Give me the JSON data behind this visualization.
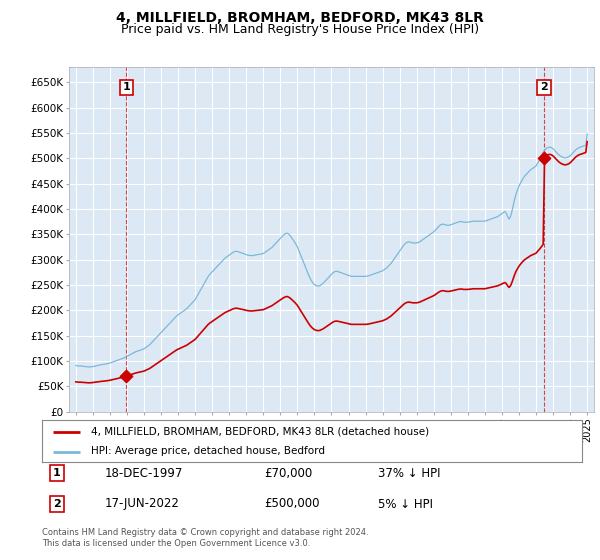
{
  "title": "4, MILLFIELD, BROMHAM, BEDFORD, MK43 8LR",
  "subtitle": "Price paid vs. HM Land Registry's House Price Index (HPI)",
  "title_fontsize": 10,
  "subtitle_fontsize": 9,
  "background_color": "#ffffff",
  "plot_bg_color": "#dce9f5",
  "grid_color": "#ffffff",
  "sale1": {
    "date": 1997.96,
    "price": 70000,
    "label": "1",
    "pct": "37% ↓ HPI",
    "date_str": "18-DEC-1997"
  },
  "sale2": {
    "date": 2022.46,
    "price": 500000,
    "label": "2",
    "pct": "5% ↓ HPI",
    "date_str": "17-JUN-2022"
  },
  "hpi_color": "#7bb8d8",
  "price_color": "#cc0000",
  "marker_color": "#cc0000",
  "dashed_color": "#cc0000",
  "ylim": [
    0,
    680000
  ],
  "xlim": [
    1994.6,
    2025.4
  ],
  "yticks": [
    0,
    50000,
    100000,
    150000,
    200000,
    250000,
    300000,
    350000,
    400000,
    450000,
    500000,
    550000,
    600000,
    650000
  ],
  "ytick_labels": [
    "£0",
    "£50K",
    "£100K",
    "£150K",
    "£200K",
    "£250K",
    "£300K",
    "£350K",
    "£400K",
    "£450K",
    "£500K",
    "£550K",
    "£600K",
    "£650K"
  ],
  "xticks": [
    1995,
    1996,
    1997,
    1998,
    1999,
    2000,
    2001,
    2002,
    2003,
    2004,
    2005,
    2006,
    2007,
    2008,
    2009,
    2010,
    2011,
    2012,
    2013,
    2014,
    2015,
    2016,
    2017,
    2018,
    2019,
    2020,
    2021,
    2022,
    2023,
    2024,
    2025
  ],
  "legend_label1": "4, MILLFIELD, BROMHAM, BEDFORD, MK43 8LR (detached house)",
  "legend_label2": "HPI: Average price, detached house, Bedford",
  "footer": "Contains HM Land Registry data © Crown copyright and database right 2024.\nThis data is licensed under the Open Government Licence v3.0.",
  "hpi_monthly": [
    [
      1995.0,
      91000
    ],
    [
      1995.083,
      90500
    ],
    [
      1995.167,
      90000
    ],
    [
      1995.25,
      90200
    ],
    [
      1995.333,
      89800
    ],
    [
      1995.417,
      89500
    ],
    [
      1995.5,
      89000
    ],
    [
      1995.583,
      88800
    ],
    [
      1995.667,
      88500
    ],
    [
      1995.75,
      88000
    ],
    [
      1995.833,
      88200
    ],
    [
      1995.917,
      88500
    ],
    [
      1996.0,
      89000
    ],
    [
      1996.083,
      89500
    ],
    [
      1996.167,
      90000
    ],
    [
      1996.25,
      90800
    ],
    [
      1996.333,
      91500
    ],
    [
      1996.417,
      92000
    ],
    [
      1996.5,
      92500
    ],
    [
      1996.583,
      93000
    ],
    [
      1996.667,
      93500
    ],
    [
      1996.75,
      94000
    ],
    [
      1996.833,
      94500
    ],
    [
      1996.917,
      95000
    ],
    [
      1997.0,
      96000
    ],
    [
      1997.083,
      97000
    ],
    [
      1997.167,
      98000
    ],
    [
      1997.25,
      99000
    ],
    [
      1997.333,
      100000
    ],
    [
      1997.417,
      101000
    ],
    [
      1997.5,
      102000
    ],
    [
      1997.583,
      103000
    ],
    [
      1997.667,
      104000
    ],
    [
      1997.75,
      105000
    ],
    [
      1997.833,
      106500
    ],
    [
      1997.917,
      108000
    ],
    [
      1998.0,
      109000
    ],
    [
      1998.083,
      110500
    ],
    [
      1998.167,
      112000
    ],
    [
      1998.25,
      113500
    ],
    [
      1998.333,
      115000
    ],
    [
      1998.417,
      116500
    ],
    [
      1998.5,
      118000
    ],
    [
      1998.583,
      119000
    ],
    [
      1998.667,
      120000
    ],
    [
      1998.75,
      121000
    ],
    [
      1998.833,
      122000
    ],
    [
      1998.917,
      123000
    ],
    [
      1999.0,
      124000
    ],
    [
      1999.083,
      126000
    ],
    [
      1999.167,
      128000
    ],
    [
      1999.25,
      130000
    ],
    [
      1999.333,
      132000
    ],
    [
      1999.417,
      135000
    ],
    [
      1999.5,
      138000
    ],
    [
      1999.583,
      141000
    ],
    [
      1999.667,
      144000
    ],
    [
      1999.75,
      147000
    ],
    [
      1999.833,
      150000
    ],
    [
      1999.917,
      153000
    ],
    [
      2000.0,
      156000
    ],
    [
      2000.083,
      159000
    ],
    [
      2000.167,
      162000
    ],
    [
      2000.25,
      165000
    ],
    [
      2000.333,
      168000
    ],
    [
      2000.417,
      171000
    ],
    [
      2000.5,
      174000
    ],
    [
      2000.583,
      177000
    ],
    [
      2000.667,
      180000
    ],
    [
      2000.75,
      183000
    ],
    [
      2000.833,
      186000
    ],
    [
      2000.917,
      189000
    ],
    [
      2001.0,
      191000
    ],
    [
      2001.083,
      193000
    ],
    [
      2001.167,
      195000
    ],
    [
      2001.25,
      197000
    ],
    [
      2001.333,
      199000
    ],
    [
      2001.417,
      201000
    ],
    [
      2001.5,
      203000
    ],
    [
      2001.583,
      206000
    ],
    [
      2001.667,
      209000
    ],
    [
      2001.75,
      212000
    ],
    [
      2001.833,
      215000
    ],
    [
      2001.917,
      218000
    ],
    [
      2002.0,
      221000
    ],
    [
      2002.083,
      226000
    ],
    [
      2002.167,
      231000
    ],
    [
      2002.25,
      236000
    ],
    [
      2002.333,
      241000
    ],
    [
      2002.417,
      246000
    ],
    [
      2002.5,
      251000
    ],
    [
      2002.583,
      256000
    ],
    [
      2002.667,
      261000
    ],
    [
      2002.75,
      266000
    ],
    [
      2002.833,
      270000
    ],
    [
      2002.917,
      273000
    ],
    [
      2003.0,
      276000
    ],
    [
      2003.083,
      279000
    ],
    [
      2003.167,
      282000
    ],
    [
      2003.25,
      285000
    ],
    [
      2003.333,
      288000
    ],
    [
      2003.417,
      291000
    ],
    [
      2003.5,
      294000
    ],
    [
      2003.583,
      297000
    ],
    [
      2003.667,
      300000
    ],
    [
      2003.75,
      303000
    ],
    [
      2003.833,
      305000
    ],
    [
      2003.917,
      307000
    ],
    [
      2004.0,
      309000
    ],
    [
      2004.083,
      311000
    ],
    [
      2004.167,
      313000
    ],
    [
      2004.25,
      315000
    ],
    [
      2004.333,
      316000
    ],
    [
      2004.417,
      316500
    ],
    [
      2004.5,
      316000
    ],
    [
      2004.583,
      315000
    ],
    [
      2004.667,
      314000
    ],
    [
      2004.75,
      313000
    ],
    [
      2004.833,
      312000
    ],
    [
      2004.917,
      311000
    ],
    [
      2005.0,
      310000
    ],
    [
      2005.083,
      309000
    ],
    [
      2005.167,
      308500
    ],
    [
      2005.25,
      308000
    ],
    [
      2005.333,
      308000
    ],
    [
      2005.417,
      308500
    ],
    [
      2005.5,
      309000
    ],
    [
      2005.583,
      309500
    ],
    [
      2005.667,
      310000
    ],
    [
      2005.75,
      310500
    ],
    [
      2005.833,
      311000
    ],
    [
      2005.917,
      311500
    ],
    [
      2006.0,
      312000
    ],
    [
      2006.083,
      314000
    ],
    [
      2006.167,
      316000
    ],
    [
      2006.25,
      318000
    ],
    [
      2006.333,
      320000
    ],
    [
      2006.417,
      322000
    ],
    [
      2006.5,
      324000
    ],
    [
      2006.583,
      327000
    ],
    [
      2006.667,
      330000
    ],
    [
      2006.75,
      333000
    ],
    [
      2006.833,
      336000
    ],
    [
      2006.917,
      339000
    ],
    [
      2007.0,
      342000
    ],
    [
      2007.083,
      345000
    ],
    [
      2007.167,
      348000
    ],
    [
      2007.25,
      350000
    ],
    [
      2007.333,
      352000
    ],
    [
      2007.417,
      352000
    ],
    [
      2007.5,
      350000
    ],
    [
      2007.583,
      347000
    ],
    [
      2007.667,
      343000
    ],
    [
      2007.75,
      339000
    ],
    [
      2007.833,
      335000
    ],
    [
      2007.917,
      330000
    ],
    [
      2008.0,
      325000
    ],
    [
      2008.083,
      318000
    ],
    [
      2008.167,
      311000
    ],
    [
      2008.25,
      304000
    ],
    [
      2008.333,
      297000
    ],
    [
      2008.417,
      290000
    ],
    [
      2008.5,
      283000
    ],
    [
      2008.583,
      276000
    ],
    [
      2008.667,
      269000
    ],
    [
      2008.75,
      263000
    ],
    [
      2008.833,
      258000
    ],
    [
      2008.917,
      254000
    ],
    [
      2009.0,
      251000
    ],
    [
      2009.083,
      249000
    ],
    [
      2009.167,
      248000
    ],
    [
      2009.25,
      248000
    ],
    [
      2009.333,
      249000
    ],
    [
      2009.417,
      251000
    ],
    [
      2009.5,
      253000
    ],
    [
      2009.583,
      256000
    ],
    [
      2009.667,
      259000
    ],
    [
      2009.75,
      262000
    ],
    [
      2009.833,
      265000
    ],
    [
      2009.917,
      268000
    ],
    [
      2010.0,
      271000
    ],
    [
      2010.083,
      274000
    ],
    [
      2010.167,
      276000
    ],
    [
      2010.25,
      277000
    ],
    [
      2010.333,
      277000
    ],
    [
      2010.417,
      276000
    ],
    [
      2010.5,
      275000
    ],
    [
      2010.583,
      274000
    ],
    [
      2010.667,
      273000
    ],
    [
      2010.75,
      272000
    ],
    [
      2010.833,
      271000
    ],
    [
      2010.917,
      270000
    ],
    [
      2011.0,
      269000
    ],
    [
      2011.083,
      268000
    ],
    [
      2011.167,
      267000
    ],
    [
      2011.25,
      267000
    ],
    [
      2011.333,
      267000
    ],
    [
      2011.417,
      267000
    ],
    [
      2011.5,
      267000
    ],
    [
      2011.583,
      267000
    ],
    [
      2011.667,
      267000
    ],
    [
      2011.75,
      267000
    ],
    [
      2011.833,
      267000
    ],
    [
      2011.917,
      267000
    ],
    [
      2012.0,
      267000
    ],
    [
      2012.083,
      267500
    ],
    [
      2012.167,
      268000
    ],
    [
      2012.25,
      269000
    ],
    [
      2012.333,
      270000
    ],
    [
      2012.417,
      271000
    ],
    [
      2012.5,
      272000
    ],
    [
      2012.583,
      273000
    ],
    [
      2012.667,
      274000
    ],
    [
      2012.75,
      275000
    ],
    [
      2012.833,
      276000
    ],
    [
      2012.917,
      277000
    ],
    [
      2013.0,
      278000
    ],
    [
      2013.083,
      280000
    ],
    [
      2013.167,
      282000
    ],
    [
      2013.25,
      284000
    ],
    [
      2013.333,
      287000
    ],
    [
      2013.417,
      290000
    ],
    [
      2013.5,
      293000
    ],
    [
      2013.583,
      297000
    ],
    [
      2013.667,
      301000
    ],
    [
      2013.75,
      305000
    ],
    [
      2013.833,
      309000
    ],
    [
      2013.917,
      313000
    ],
    [
      2014.0,
      317000
    ],
    [
      2014.083,
      321000
    ],
    [
      2014.167,
      325000
    ],
    [
      2014.25,
      329000
    ],
    [
      2014.333,
      332000
    ],
    [
      2014.417,
      334000
    ],
    [
      2014.5,
      335000
    ],
    [
      2014.583,
      335000
    ],
    [
      2014.667,
      334000
    ],
    [
      2014.75,
      333000
    ],
    [
      2014.833,
      333000
    ],
    [
      2014.917,
      333000
    ],
    [
      2015.0,
      333000
    ],
    [
      2015.083,
      334000
    ],
    [
      2015.167,
      335000
    ],
    [
      2015.25,
      337000
    ],
    [
      2015.333,
      339000
    ],
    [
      2015.417,
      341000
    ],
    [
      2015.5,
      343000
    ],
    [
      2015.583,
      345000
    ],
    [
      2015.667,
      347000
    ],
    [
      2015.75,
      349000
    ],
    [
      2015.833,
      351000
    ],
    [
      2015.917,
      353000
    ],
    [
      2016.0,
      355000
    ],
    [
      2016.083,
      358000
    ],
    [
      2016.167,
      361000
    ],
    [
      2016.25,
      364000
    ],
    [
      2016.333,
      367000
    ],
    [
      2016.417,
      369000
    ],
    [
      2016.5,
      370000
    ],
    [
      2016.583,
      370000
    ],
    [
      2016.667,
      369000
    ],
    [
      2016.75,
      368000
    ],
    [
      2016.833,
      368000
    ],
    [
      2016.917,
      368000
    ],
    [
      2017.0,
      369000
    ],
    [
      2017.083,
      370000
    ],
    [
      2017.167,
      371000
    ],
    [
      2017.25,
      372000
    ],
    [
      2017.333,
      373000
    ],
    [
      2017.417,
      374000
    ],
    [
      2017.5,
      375000
    ],
    [
      2017.583,
      375000
    ],
    [
      2017.667,
      375000
    ],
    [
      2017.75,
      374000
    ],
    [
      2017.833,
      374000
    ],
    [
      2017.917,
      374000
    ],
    [
      2018.0,
      374000
    ],
    [
      2018.083,
      374500
    ],
    [
      2018.167,
      375000
    ],
    [
      2018.25,
      375500
    ],
    [
      2018.333,
      376000
    ],
    [
      2018.417,
      376000
    ],
    [
      2018.5,
      376000
    ],
    [
      2018.583,
      376000
    ],
    [
      2018.667,
      376000
    ],
    [
      2018.75,
      376000
    ],
    [
      2018.833,
      376000
    ],
    [
      2018.917,
      376000
    ],
    [
      2019.0,
      376000
    ],
    [
      2019.083,
      377000
    ],
    [
      2019.167,
      378000
    ],
    [
      2019.25,
      379000
    ],
    [
      2019.333,
      380000
    ],
    [
      2019.417,
      381000
    ],
    [
      2019.5,
      382000
    ],
    [
      2019.583,
      383000
    ],
    [
      2019.667,
      384000
    ],
    [
      2019.75,
      385000
    ],
    [
      2019.833,
      387000
    ],
    [
      2019.917,
      389000
    ],
    [
      2020.0,
      391000
    ],
    [
      2020.083,
      393000
    ],
    [
      2020.167,
      395000
    ],
    [
      2020.25,
      392000
    ],
    [
      2020.333,
      385000
    ],
    [
      2020.417,
      380000
    ],
    [
      2020.5,
      385000
    ],
    [
      2020.583,
      395000
    ],
    [
      2020.667,
      408000
    ],
    [
      2020.75,
      420000
    ],
    [
      2020.833,
      430000
    ],
    [
      2020.917,
      438000
    ],
    [
      2021.0,
      445000
    ],
    [
      2021.083,
      451000
    ],
    [
      2021.167,
      456000
    ],
    [
      2021.25,
      461000
    ],
    [
      2021.333,
      465000
    ],
    [
      2021.417,
      468000
    ],
    [
      2021.5,
      471000
    ],
    [
      2021.583,
      474000
    ],
    [
      2021.667,
      477000
    ],
    [
      2021.75,
      479000
    ],
    [
      2021.833,
      481000
    ],
    [
      2021.917,
      483000
    ],
    [
      2022.0,
      485000
    ],
    [
      2022.083,
      490000
    ],
    [
      2022.167,
      495000
    ],
    [
      2022.25,
      500000
    ],
    [
      2022.333,
      506000
    ],
    [
      2022.417,
      512000
    ],
    [
      2022.5,
      516000
    ],
    [
      2022.583,
      519000
    ],
    [
      2022.667,
      521000
    ],
    [
      2022.75,
      522000
    ],
    [
      2022.833,
      522000
    ],
    [
      2022.917,
      521000
    ],
    [
      2023.0,
      519000
    ],
    [
      2023.083,
      516000
    ],
    [
      2023.167,
      513000
    ],
    [
      2023.25,
      510000
    ],
    [
      2023.333,
      507000
    ],
    [
      2023.417,
      505000
    ],
    [
      2023.5,
      503000
    ],
    [
      2023.583,
      502000
    ],
    [
      2023.667,
      501000
    ],
    [
      2023.75,
      501000
    ],
    [
      2023.833,
      502000
    ],
    [
      2023.917,
      503000
    ],
    [
      2024.0,
      505000
    ],
    [
      2024.083,
      508000
    ],
    [
      2024.167,
      511000
    ],
    [
      2024.25,
      514000
    ],
    [
      2024.333,
      517000
    ],
    [
      2024.417,
      519000
    ],
    [
      2024.5,
      521000
    ],
    [
      2024.583,
      522000
    ],
    [
      2024.667,
      523000
    ],
    [
      2024.75,
      524000
    ],
    [
      2024.833,
      525000
    ],
    [
      2024.917,
      526000
    ],
    [
      2025.0,
      548000
    ]
  ]
}
